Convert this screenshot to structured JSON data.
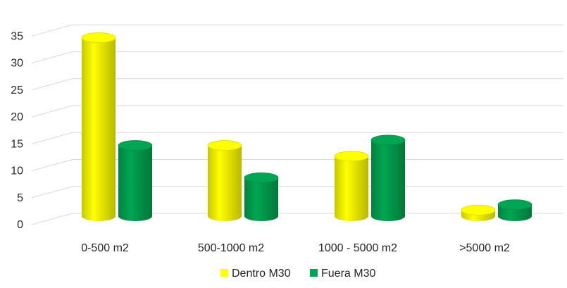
{
  "chart_data": {
    "type": "bar",
    "style": "3d-cylinder",
    "categories": [
      "0-500 m2",
      "500-1000 m2",
      "1000 - 5000 m2",
      ">5000 m2"
    ],
    "series": [
      {
        "name": "Dentro M30",
        "color": "#ffff00",
        "values": [
          33,
          13,
          11,
          1
        ]
      },
      {
        "name": "Fuera M30",
        "color": "#00a651",
        "values": [
          13,
          7,
          14,
          2
        ]
      }
    ],
    "ylim": [
      0,
      35
    ],
    "yticks": [
      0,
      5,
      10,
      15,
      20,
      25,
      30,
      35
    ],
    "grid": true,
    "legend_position": "bottom"
  }
}
